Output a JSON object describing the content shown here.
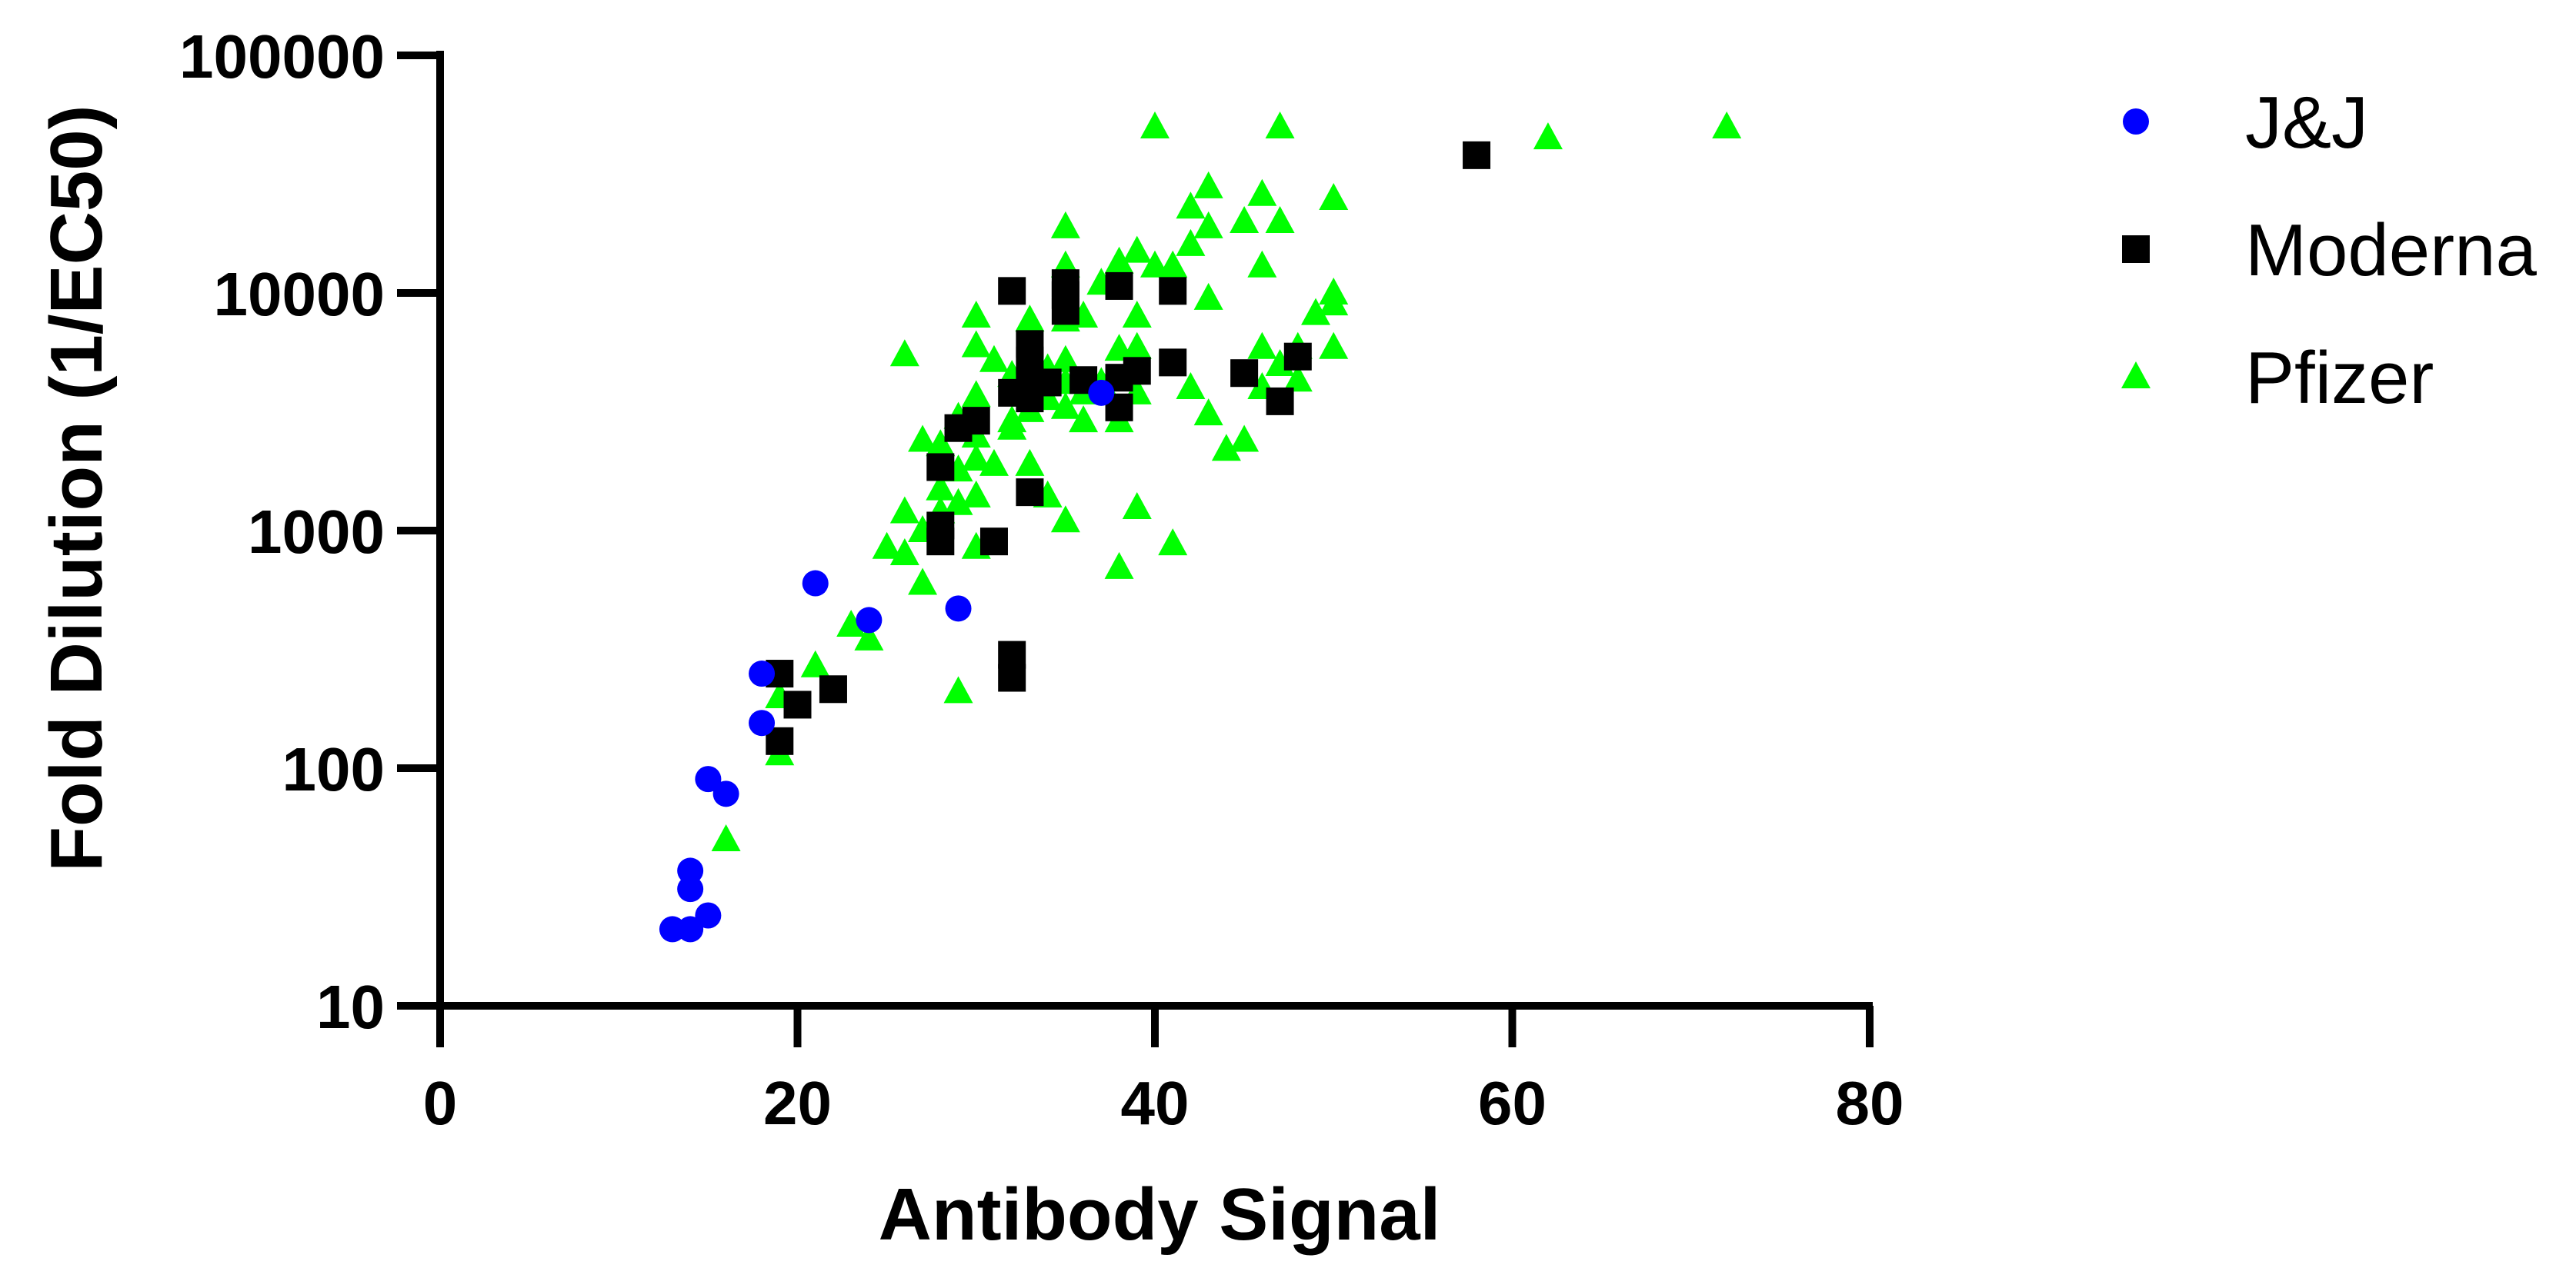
{
  "chart_data": {
    "type": "scatter",
    "xlabel": "Antibody Signal",
    "ylabel": "Fold Dilution  (1/EC50)",
    "xlim": [
      0,
      80
    ],
    "ylim": [
      10,
      100000
    ],
    "yscale": "log",
    "xticks": [
      0,
      20,
      40,
      60,
      80
    ],
    "yticks": [
      10,
      100,
      1000,
      10000,
      100000
    ],
    "xtick_labels": [
      "0",
      "20",
      "40",
      "60",
      "80"
    ],
    "ytick_labels": [
      "10",
      "100",
      "1000",
      "10000",
      "100000"
    ],
    "grid": false,
    "legend_position": "right",
    "series": [
      {
        "name": "J&J",
        "color": "#0000ff",
        "marker": "circle",
        "points": [
          [
            13,
            21
          ],
          [
            14,
            21
          ],
          [
            14,
            31
          ],
          [
            14,
            37
          ],
          [
            15,
            24
          ],
          [
            15,
            90
          ],
          [
            16,
            78
          ],
          [
            18,
            155
          ],
          [
            18,
            250
          ],
          [
            21,
            600
          ],
          [
            24,
            420
          ],
          [
            29,
            470
          ],
          [
            37,
            3800
          ]
        ]
      },
      {
        "name": "Moderna",
        "color": "#000000",
        "marker": "square",
        "points": [
          [
            19,
            130
          ],
          [
            19,
            250
          ],
          [
            20,
            185
          ],
          [
            22,
            215
          ],
          [
            28,
            900
          ],
          [
            28,
            1050
          ],
          [
            28,
            1850
          ],
          [
            29,
            2700
          ],
          [
            30,
            2900
          ],
          [
            31,
            900
          ],
          [
            32,
            240
          ],
          [
            32,
            300
          ],
          [
            32,
            3800
          ],
          [
            32,
            10200
          ],
          [
            33,
            1450
          ],
          [
            33,
            3600
          ],
          [
            33,
            4300
          ],
          [
            33,
            5200
          ],
          [
            33,
            6100
          ],
          [
            34,
            4200
          ],
          [
            35,
            8400
          ],
          [
            35,
            9800
          ],
          [
            35,
            11000
          ],
          [
            36,
            4300
          ],
          [
            38,
            3300
          ],
          [
            38,
            4400
          ],
          [
            38,
            10700
          ],
          [
            39,
            4700
          ],
          [
            41,
            5100
          ],
          [
            41,
            10200
          ],
          [
            45,
            4600
          ],
          [
            47,
            3500
          ],
          [
            48,
            5400
          ],
          [
            58,
            38000
          ]
        ]
      },
      {
        "name": "Pfizer",
        "color": "#00ff00",
        "marker": "triangle",
        "points": [
          [
            16,
            50
          ],
          [
            19,
            115
          ],
          [
            19,
            200
          ],
          [
            21,
            270
          ],
          [
            23,
            400
          ],
          [
            24,
            350
          ],
          [
            25,
            850
          ],
          [
            26,
            800
          ],
          [
            26,
            1200
          ],
          [
            26,
            5500
          ],
          [
            27,
            600
          ],
          [
            27,
            1000
          ],
          [
            27,
            2400
          ],
          [
            28,
            1200
          ],
          [
            28,
            1500
          ],
          [
            28,
            2300
          ],
          [
            29,
            1300
          ],
          [
            29,
            1800
          ],
          [
            29,
            3000
          ],
          [
            29,
            210
          ],
          [
            30,
            850
          ],
          [
            30,
            1400
          ],
          [
            30,
            2000
          ],
          [
            30,
            2500
          ],
          [
            30,
            3700
          ],
          [
            30,
            6000
          ],
          [
            30,
            8000
          ],
          [
            31,
            1900
          ],
          [
            31,
            5200
          ],
          [
            32,
            2700
          ],
          [
            32,
            2900
          ],
          [
            32,
            4500
          ],
          [
            33,
            1900
          ],
          [
            33,
            3200
          ],
          [
            33,
            7700
          ],
          [
            34,
            1400
          ],
          [
            34,
            3600
          ],
          [
            34,
            4800
          ],
          [
            35,
            1100
          ],
          [
            35,
            3300
          ],
          [
            35,
            4200
          ],
          [
            35,
            5200
          ],
          [
            35,
            7700
          ],
          [
            35,
            13000
          ],
          [
            35,
            19000
          ],
          [
            36,
            2900
          ],
          [
            36,
            3800
          ],
          [
            36,
            8000
          ],
          [
            37,
            4200
          ],
          [
            37,
            11000
          ],
          [
            38,
            700
          ],
          [
            38,
            2900
          ],
          [
            38,
            5800
          ],
          [
            38,
            13500
          ],
          [
            39,
            1250
          ],
          [
            39,
            3800
          ],
          [
            39,
            5900
          ],
          [
            39,
            8000
          ],
          [
            39,
            15000
          ],
          [
            40,
            13000
          ],
          [
            40,
            50000
          ],
          [
            41,
            880
          ],
          [
            41,
            13000
          ],
          [
            42,
            4000
          ],
          [
            42,
            16000
          ],
          [
            42,
            23000
          ],
          [
            43,
            3100
          ],
          [
            43,
            9500
          ],
          [
            43,
            19000
          ],
          [
            43,
            28000
          ],
          [
            44,
            2200
          ],
          [
            45,
            2400
          ],
          [
            45,
            20000
          ],
          [
            46,
            4000
          ],
          [
            46,
            5900
          ],
          [
            46,
            13000
          ],
          [
            46,
            26000
          ],
          [
            47,
            5000
          ],
          [
            47,
            20000
          ],
          [
            47,
            50000
          ],
          [
            48,
            4300
          ],
          [
            48,
            5900
          ],
          [
            49,
            8200
          ],
          [
            50,
            5900
          ],
          [
            50,
            9000
          ],
          [
            50,
            10000
          ],
          [
            50,
            25000
          ],
          [
            62,
            45000
          ],
          [
            72,
            50000
          ]
        ]
      }
    ]
  }
}
